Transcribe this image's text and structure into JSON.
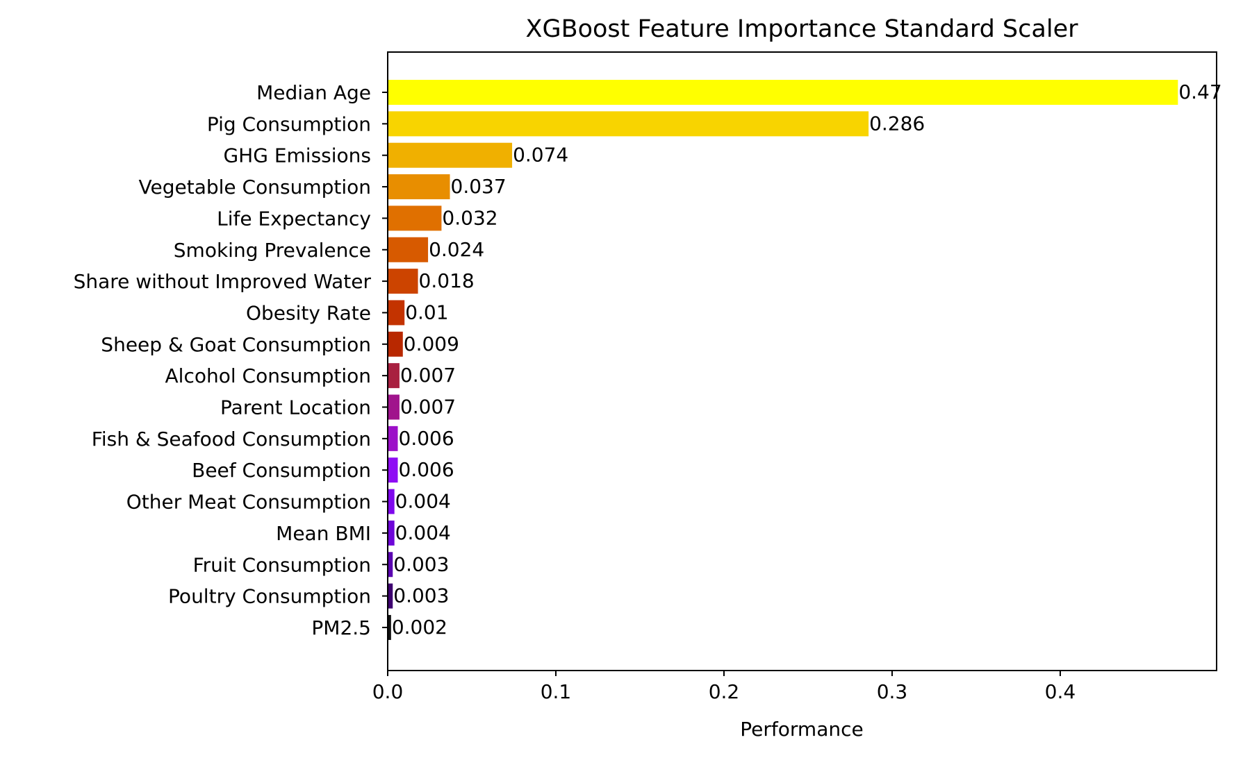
{
  "chart_data": {
    "type": "bar",
    "orientation": "horizontal",
    "title": "XGBoost Feature Importance Standard Scaler",
    "xlabel": "Performance",
    "ylabel": "",
    "xlim": [
      0,
      0.493
    ],
    "xticks": [
      0.0,
      0.1,
      0.2,
      0.3,
      0.4
    ],
    "xtick_labels": [
      "0.0",
      "0.1",
      "0.2",
      "0.3",
      "0.4"
    ],
    "grid": false,
    "categories": [
      "Median Age",
      "Pig Consumption",
      "GHG Emissions",
      "Vegetable Consumption",
      "Life Expectancy",
      "Smoking Prevalence",
      "Share without Improved Water",
      "Obesity Rate",
      "Sheep & Goat Consumption",
      "Alcohol Consumption",
      "Parent Location",
      "Fish & Seafood Consumption",
      "Beef Consumption",
      "Other Meat Consumption",
      "Mean BMI",
      "Fruit Consumption",
      "Poultry Consumption",
      "PM2.5"
    ],
    "values": [
      0.47,
      0.286,
      0.074,
      0.037,
      0.032,
      0.024,
      0.018,
      0.01,
      0.009,
      0.007,
      0.007,
      0.006,
      0.006,
      0.004,
      0.004,
      0.003,
      0.003,
      0.002
    ],
    "data_labels": [
      "0.47",
      "0.286",
      "0.074",
      "0.037",
      "0.032",
      "0.024",
      "0.018",
      "0.01",
      "0.009",
      "0.007",
      "0.007",
      "0.006",
      "0.006",
      "0.004",
      "0.004",
      "0.003",
      "0.003",
      "0.002"
    ],
    "colors": [
      "#ffff00",
      "#f8d400",
      "#f0b000",
      "#e88e00",
      "#e07000",
      "#d75a00",
      "#cc4400",
      "#c33300",
      "#b82800",
      "#a82040",
      "#a0148c",
      "#9c10c8",
      "#8e0cf4",
      "#7e08ec",
      "#6e06d8",
      "#5a04b0",
      "#3e0270",
      "#111111"
    ]
  }
}
